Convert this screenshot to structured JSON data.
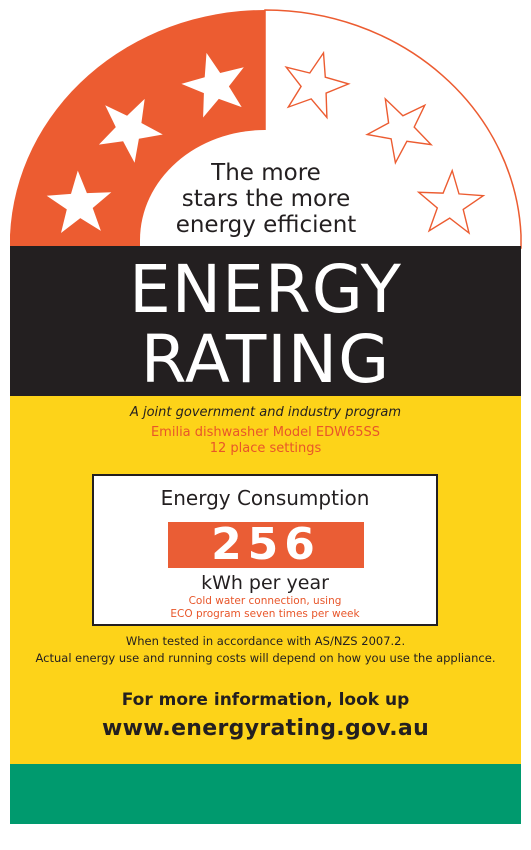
{
  "label": {
    "stars": {
      "rating": 3,
      "total": 6,
      "filled_color": "#ec5c31",
      "empty_color": "#ffffff",
      "outline_color": "#ec5c31"
    },
    "tagline": [
      "The more",
      "stars the more",
      "energy efficient"
    ],
    "title": [
      "ENERGY",
      "RATING"
    ],
    "program": "A joint government and industry program",
    "model": [
      "Emilia dishwasher Model EDW65SS",
      "12 place settings"
    ],
    "consumption": {
      "heading": "Energy Consumption",
      "value": "256",
      "unit": "kWh per year",
      "conditions": [
        "Cold water connection, using",
        "ECO program seven times per week"
      ]
    },
    "tested": [
      "When tested in accordance with AS/NZS 2007.2.",
      "Actual energy use and running costs will depend on how you use the appliance."
    ],
    "more_info": "For more information, look up",
    "url": "www.energyrating.gov.au",
    "colors": {
      "black": "#231f20",
      "yellow": "#fdd319",
      "green": "#009a6e",
      "orange": "#ea5d35"
    }
  }
}
